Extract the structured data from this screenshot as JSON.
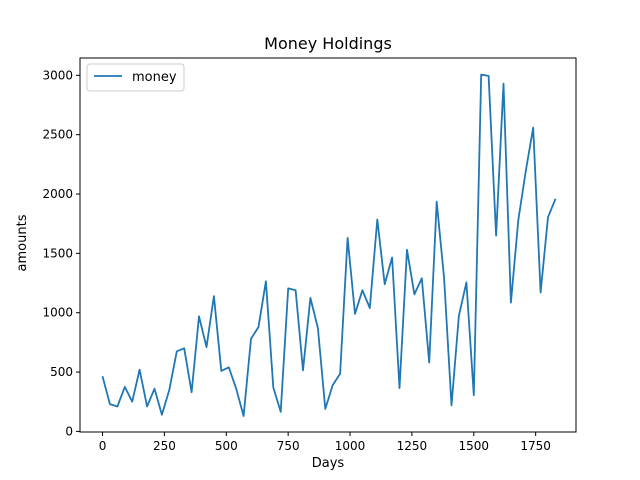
{
  "chart_data": {
    "type": "line",
    "title": "Money Holdings",
    "xlabel": "Days",
    "ylabel": "amounts",
    "xlim": [
      -91,
      1913
    ],
    "ylim": [
      -5,
      3146
    ],
    "x_ticks": [
      0,
      250,
      500,
      750,
      1000,
      1250,
      1500,
      1750
    ],
    "y_ticks": [
      0,
      500,
      1000,
      1500,
      2000,
      2500,
      3000
    ],
    "grid": false,
    "legend": "upper left",
    "series": [
      {
        "name": "money",
        "color": "#1f77b4",
        "x": [
          0,
          30,
          60,
          90,
          120,
          150,
          180,
          210,
          240,
          270,
          300,
          330,
          360,
          390,
          420,
          450,
          480,
          510,
          540,
          570,
          600,
          630,
          660,
          690,
          720,
          750,
          780,
          810,
          840,
          870,
          900,
          930,
          960,
          990,
          1020,
          1050,
          1080,
          1110,
          1140,
          1170,
          1200,
          1230,
          1260,
          1290,
          1320,
          1350,
          1380,
          1410,
          1440,
          1470,
          1500,
          1530,
          1560,
          1590,
          1620,
          1650,
          1680,
          1710,
          1740,
          1770,
          1800,
          1830
        ],
        "y": [
          465,
          230,
          210,
          375,
          250,
          520,
          210,
          360,
          140,
          350,
          675,
          700,
          330,
          970,
          710,
          1140,
          510,
          540,
          360,
          130,
          780,
          880,
          1265,
          370,
          165,
          1205,
          1190,
          515,
          1125,
          870,
          190,
          390,
          485,
          1630,
          990,
          1190,
          1040,
          1785,
          1240,
          1465,
          365,
          1530,
          1155,
          1290,
          580,
          1935,
          1290,
          220,
          975,
          1255,
          305,
          3005,
          2995,
          1650,
          2930,
          1085,
          1780,
          2195,
          2560,
          1170,
          1805,
          1960
        ]
      }
    ]
  }
}
